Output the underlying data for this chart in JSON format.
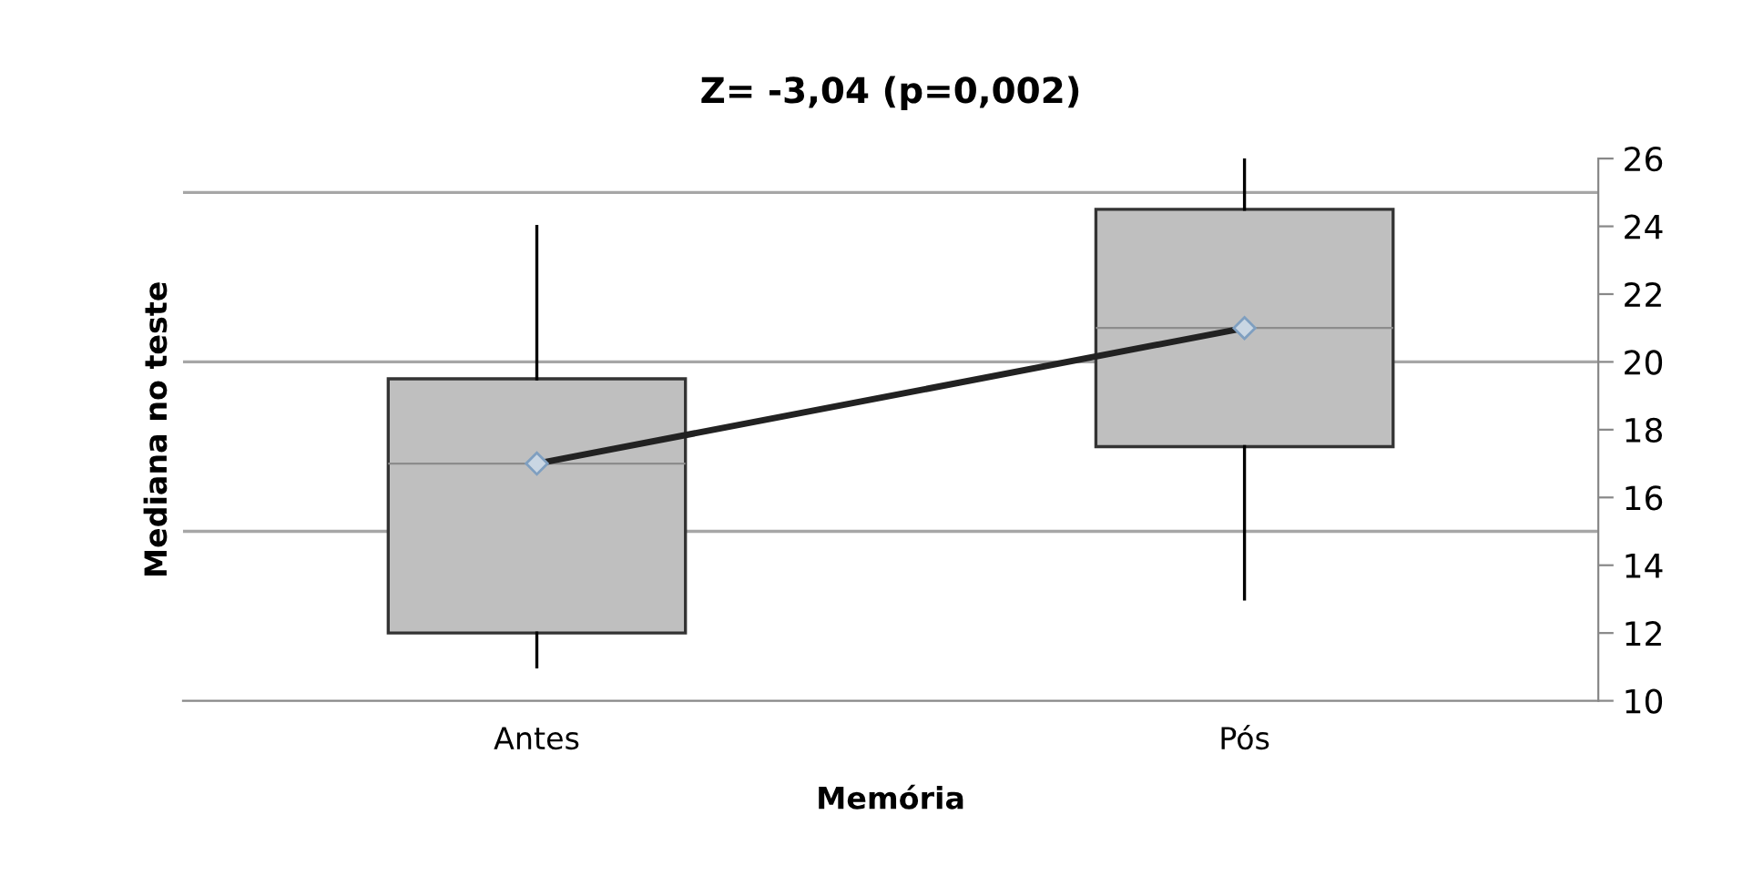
{
  "chart_data": {
    "type": "box",
    "title": "Z= -3,04 (p=0,002)",
    "xlabel": "Memória",
    "ylabel": "Mediana no teste",
    "categories": [
      "Antes",
      "Pós"
    ],
    "boxes": [
      {
        "low": 11,
        "q1": 12,
        "median": 17,
        "q3": 19.5,
        "high": 24
      },
      {
        "low": 13,
        "q1": 17.5,
        "median": 21,
        "q3": 24.5,
        "high": 26
      }
    ],
    "color": "#bfbfbf",
    "series": [
      {
        "type": "line",
        "color": "#222222",
        "values": [
          17,
          21
        ],
        "marker": "diamond"
      }
    ],
    "ylim": [
      10,
      26
    ],
    "yticks": [
      10,
      12,
      14,
      16,
      18,
      20,
      22,
      24,
      26
    ],
    "ref_lines": [
      {
        "axis": "y",
        "value": 15,
        "color": "#a6a6a6"
      },
      {
        "axis": "y",
        "value": 20,
        "color": "#a6a6a6"
      },
      {
        "axis": "y",
        "value": 25,
        "color": "#a6a6a6"
      }
    ],
    "grid": false,
    "legend": false
  }
}
